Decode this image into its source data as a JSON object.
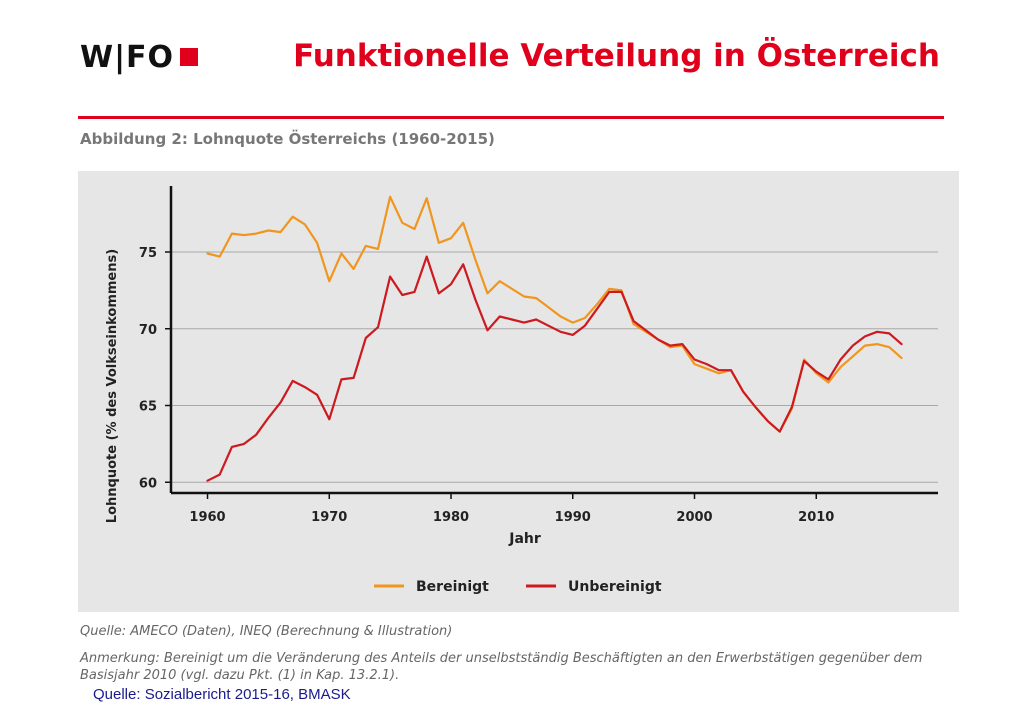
{
  "header": {
    "logo_text": "W|FO",
    "title": "Funktionelle Verteilung in Österreich",
    "accent_color": "#e0001b"
  },
  "figure": {
    "caption": "Abbildung 2: Lohnquote Österreichs (1960-2015)",
    "source_note": "Quelle: AMECO (Daten), INEQ (Berechnung & Illustration)",
    "remark": "Anmerkung: Bereinigt um die Veränderung des Anteils der unselbstständig Beschäftigten an den Erwerbstätigen gegenüber dem Basisjahr 2010 (vgl. dazu Pkt. (1) in Kap. 13.2.1)."
  },
  "footer": {
    "source": "Quelle: Sozialbericht 2015-16, BMASK"
  },
  "chart_data": {
    "type": "line",
    "title": "",
    "xlabel": "Jahr",
    "ylabel": "Lohnquote (% des Volkseinkommens)",
    "xlim": [
      1957,
      2020
    ],
    "ylim": [
      59.3,
      79.3
    ],
    "x_ticks": [
      1960,
      1970,
      1980,
      1990,
      2000,
      2010
    ],
    "y_ticks": [
      60,
      65,
      70,
      75
    ],
    "grid": "horizontal",
    "legend_position": "bottom",
    "x": [
      1960,
      1961,
      1962,
      1963,
      1964,
      1965,
      1966,
      1967,
      1968,
      1969,
      1970,
      1971,
      1972,
      1973,
      1974,
      1975,
      1976,
      1977,
      1978,
      1979,
      1980,
      1981,
      1982,
      1983,
      1984,
      1985,
      1986,
      1987,
      1988,
      1989,
      1990,
      1991,
      1992,
      1993,
      1994,
      1995,
      1996,
      1997,
      1998,
      1999,
      2000,
      2001,
      2002,
      2003,
      2004,
      2005,
      2006,
      2007,
      2008,
      2009,
      2010,
      2011,
      2012,
      2013,
      2014,
      2015,
      2016,
      2017
    ],
    "series": [
      {
        "name": "Bereinigt",
        "color": "#f0961e",
        "values": [
          74.9,
          74.7,
          76.2,
          76.1,
          76.2,
          76.4,
          76.3,
          77.3,
          76.8,
          75.6,
          73.1,
          74.9,
          73.9,
          75.4,
          75.2,
          78.6,
          76.9,
          76.5,
          78.5,
          75.6,
          75.9,
          76.9,
          74.5,
          72.3,
          73.1,
          72.6,
          72.1,
          72.0,
          71.4,
          70.8,
          70.4,
          70.7,
          71.6,
          72.6,
          72.5,
          70.3,
          69.8,
          69.3,
          68.8,
          68.9,
          67.7,
          67.4,
          67.1,
          67.3,
          65.9,
          64.9,
          64.0,
          63.3,
          64.8,
          68.0,
          67.1,
          66.5,
          67.5,
          68.2,
          68.9,
          69.0,
          68.8,
          68.1
        ]
      },
      {
        "name": "Unbereinigt",
        "color": "#cc1a1f",
        "values": [
          60.1,
          60.5,
          62.3,
          62.5,
          63.1,
          64.2,
          65.2,
          66.6,
          66.2,
          65.7,
          64.1,
          66.7,
          66.8,
          69.4,
          70.1,
          73.4,
          72.2,
          72.4,
          74.7,
          72.3,
          72.9,
          74.2,
          71.9,
          69.9,
          70.8,
          70.6,
          70.4,
          70.6,
          70.2,
          69.8,
          69.6,
          70.2,
          71.3,
          72.4,
          72.4,
          70.5,
          69.9,
          69.3,
          68.9,
          69.0,
          68.0,
          67.7,
          67.3,
          67.3,
          65.9,
          64.9,
          64.0,
          63.3,
          64.9,
          67.9,
          67.2,
          66.7,
          68.0,
          68.9,
          69.5,
          69.8,
          69.7,
          69.0
        ]
      }
    ]
  }
}
